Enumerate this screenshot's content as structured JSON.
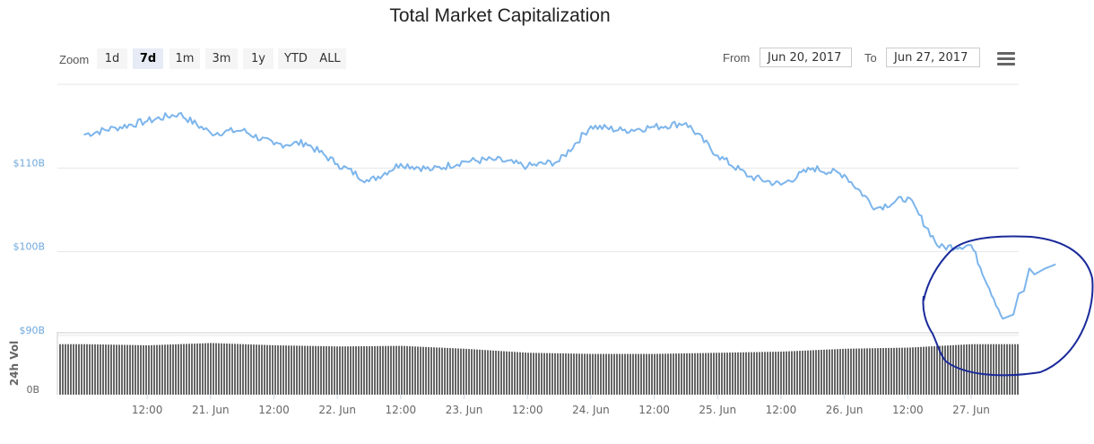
{
  "title": "Total Market Capitalization",
  "toolbar": {
    "zoom_label": "Zoom",
    "zoom_buttons": [
      "1d",
      "7d",
      "1m",
      "3m",
      "1y",
      "YTD",
      "ALL"
    ],
    "active_zoom": "7d",
    "from_label": "From",
    "from_value": "Jun 20, 2017",
    "to_label": "To",
    "to_value": "Jun 27, 2017"
  },
  "icons": {
    "menu": "hamburger-menu-icon"
  },
  "colors": {
    "line": "#7cb5ec",
    "volume": "#666666",
    "annotation": "#1a2a9a"
  },
  "chart_data": {
    "type": "line",
    "title": "Total Market Capitalization",
    "ylabel": "Market Cap",
    "ylim": [
      90,
      120
    ],
    "y_unit": "B USD",
    "y_tick_labels": [
      "$90B",
      "$100B",
      "$110B"
    ],
    "x_tick_labels": [
      "12:00",
      "21. Jun",
      "12:00",
      "22. Jun",
      "12:00",
      "23. Jun",
      "12:00",
      "24. Jun",
      "12:00",
      "25. Jun",
      "12:00",
      "26. Jun",
      "12:00",
      "27. Jun"
    ],
    "grid": true,
    "series": [
      {
        "name": "Market Cap",
        "x": [
          "Jun 20 00:00",
          "Jun 20 06:00",
          "Jun 20 12:00",
          "Jun 20 18:00",
          "Jun 21 00:00",
          "Jun 21 06:00",
          "Jun 21 12:00",
          "Jun 21 18:00",
          "Jun 22 00:00",
          "Jun 22 06:00",
          "Jun 22 12:00",
          "Jun 22 18:00",
          "Jun 23 00:00",
          "Jun 23 06:00",
          "Jun 23 12:00",
          "Jun 23 18:00",
          "Jun 24 00:00",
          "Jun 24 06:00",
          "Jun 24 12:00",
          "Jun 24 18:00",
          "Jun 25 00:00",
          "Jun 25 06:00",
          "Jun 25 12:00",
          "Jun 25 18:00",
          "Jun 26 00:00",
          "Jun 26 06:00",
          "Jun 26 12:00",
          "Jun 26 18:00",
          "Jun 27 00:00",
          "Jun 27 06:00"
        ],
        "values": [
          114.0,
          114.8,
          115.6,
          116.5,
          114.2,
          114.5,
          112.8,
          113.0,
          110.5,
          108.4,
          110.5,
          109.8,
          110.8,
          111.0,
          110.2,
          110.8,
          115.0,
          114.5,
          114.9,
          115.4,
          111.5,
          109.0,
          108.0,
          110.0,
          109.2,
          105.2,
          106.5,
          100.5,
          100.8,
          92.0
        ]
      },
      {
        "name": "24h Vol",
        "x": [
          "Jun 20 00:00",
          "Jun 20 12:00",
          "Jun 21 00:00",
          "Jun 21 12:00",
          "Jun 22 00:00",
          "Jun 22 12:00",
          "Jun 23 00:00",
          "Jun 23 12:00",
          "Jun 24 00:00",
          "Jun 24 12:00",
          "Jun 25 00:00",
          "Jun 25 12:00",
          "Jun 26 00:00",
          "Jun 26 12:00",
          "Jun 27 00:00"
        ],
        "values": [
          0.88,
          0.86,
          0.9,
          0.86,
          0.84,
          0.85,
          0.8,
          0.73,
          0.71,
          0.71,
          0.73,
          0.75,
          0.8,
          0.82,
          0.88
        ]
      }
    ],
    "volume_label": "24h Vol",
    "volume_zero_label": "0B"
  }
}
